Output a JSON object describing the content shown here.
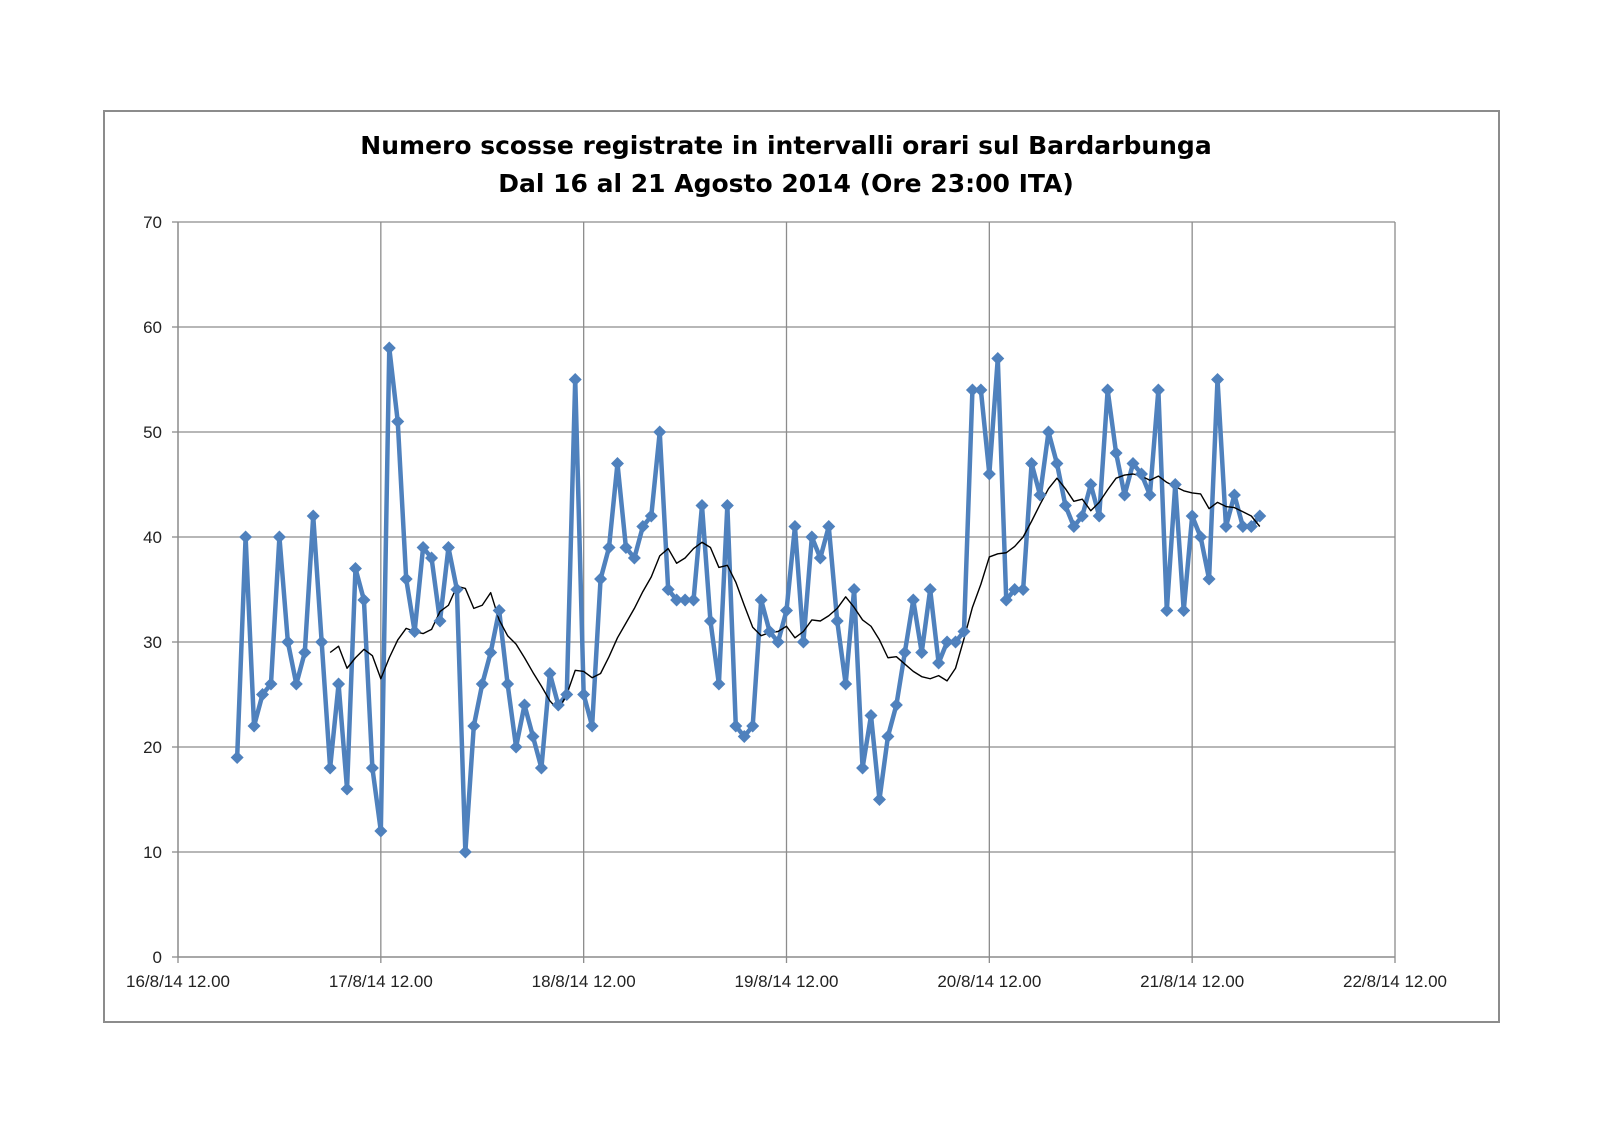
{
  "chart_data": {
    "type": "line",
    "title": "Numero scosse registrate in intervalli orari sul Bardarbunga",
    "subtitle": "Dal 16 al 21 Agosto 2014 (Ore 23:00 ITA)",
    "xlabel": "",
    "ylabel": "",
    "ylim": [
      0,
      70
    ],
    "y_ticks": [
      0,
      10,
      20,
      30,
      40,
      50,
      60,
      70
    ],
    "x_ticks": [
      "16/8/14 12.00",
      "17/8/14 12.00",
      "18/8/14 12.00",
      "19/8/14 12.00",
      "20/8/14 12.00",
      "21/8/14 12.00",
      "22/8/14 12.00"
    ],
    "xlim": [
      "2014-08-16T12:00",
      "2014-08-22T12:00"
    ],
    "start_time": "2014-08-16T19:00",
    "step_hours": 1,
    "grid": true,
    "legend": "none",
    "series": [
      {
        "name": "",
        "color": "#4f81bd",
        "marker": "diamond",
        "values": [
          19,
          40,
          22,
          25,
          26,
          40,
          30,
          26,
          29,
          42,
          30,
          18,
          26,
          16,
          37,
          34,
          18,
          12,
          58,
          51,
          36,
          31,
          39,
          38,
          32,
          39,
          35,
          10,
          22,
          26,
          29,
          33,
          26,
          20,
          24,
          21,
          18,
          27,
          24,
          25,
          55,
          25,
          22,
          36,
          39,
          47,
          39,
          38,
          41,
          42,
          50,
          35,
          34,
          34,
          34,
          43,
          32,
          26,
          43,
          22,
          21,
          22,
          34,
          31,
          30,
          33,
          41,
          30,
          40,
          38,
          41,
          32,
          26,
          35,
          18,
          23,
          15,
          21,
          24,
          29,
          34,
          29,
          35,
          28,
          30,
          30,
          31,
          54,
          54,
          46,
          57,
          34,
          35,
          35,
          47,
          44,
          50,
          47,
          43,
          41,
          42,
          45,
          42,
          54,
          48,
          44,
          47,
          46,
          44,
          54,
          33,
          45,
          33,
          42,
          40,
          36,
          55,
          41,
          44,
          41,
          41,
          42
        ]
      },
      {
        "name": "",
        "color": "#000000",
        "marker": "none",
        "values": [
          null,
          null,
          null,
          null,
          null,
          null,
          null,
          null,
          null,
          null,
          null,
          29.0,
          29.6,
          27.5,
          28.5,
          29.3,
          28.7,
          26.5,
          28.5,
          30.2,
          31.3,
          31.0,
          30.8,
          31.2,
          32.9,
          33.5,
          35.3,
          35.1,
          33.2,
          33.5,
          34.7,
          32.1,
          30.6,
          29.8,
          28.5,
          27.1,
          25.8,
          24.4,
          23.5,
          25.0,
          27.3,
          27.2,
          26.6,
          27.0,
          28.6,
          30.4,
          31.8,
          33.2,
          34.8,
          36.2,
          38.2,
          38.9,
          37.5,
          38.0,
          38.9,
          39.5,
          39.0,
          37.1,
          37.3,
          35.7,
          33.5,
          31.4,
          30.6,
          30.9,
          31.0,
          31.5,
          30.4,
          31.0,
          32.1,
          32.0,
          32.5,
          33.2,
          34.3,
          33.3,
          32.1,
          31.5,
          30.2,
          28.5,
          28.6,
          27.9,
          27.2,
          26.7,
          26.5,
          26.8,
          26.3,
          27.5,
          30.3,
          33.3,
          35.5,
          38.1,
          38.4,
          38.5,
          39.1,
          40.0,
          41.5,
          43.1,
          44.6,
          45.6,
          44.6,
          43.4,
          43.6,
          42.5,
          43.3,
          44.5,
          45.6,
          45.9,
          46.0,
          45.8,
          45.4,
          45.8,
          45.2,
          44.8,
          44.4,
          44.2,
          44.1,
          42.7,
          43.3,
          42.9,
          42.8,
          42.4,
          42.0,
          41.0
        ]
      }
    ]
  }
}
